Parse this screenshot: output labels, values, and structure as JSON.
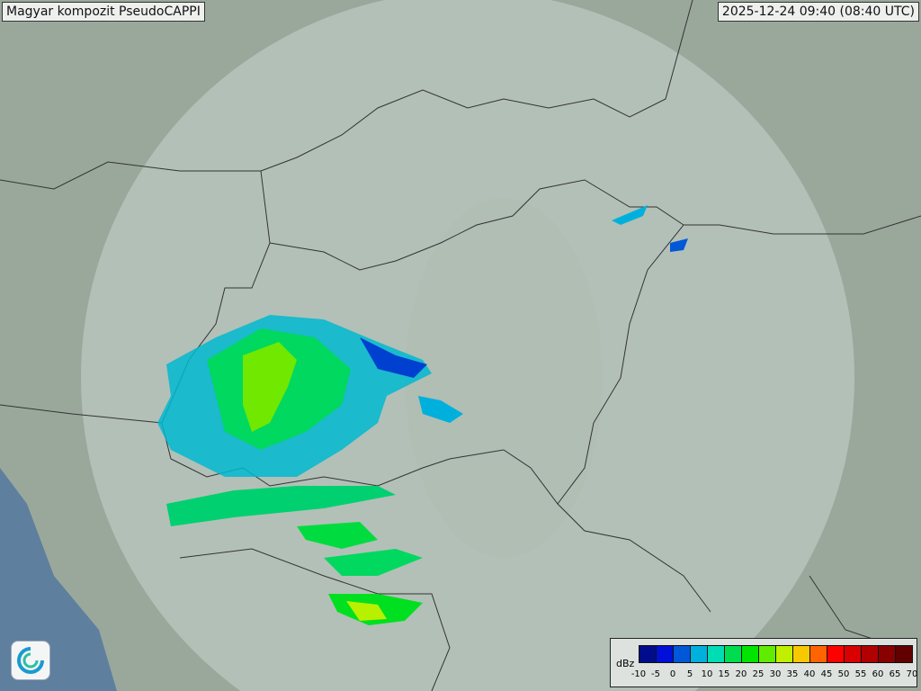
{
  "header": {
    "title": "Magyar kompozit  PseudoCAPPI",
    "timestamp": "2025-12-24 09:40 (08:40 UTC)"
  },
  "legend": {
    "unit": "dBz",
    "ticks": [
      "-10",
      "-5",
      "0",
      "5",
      "10",
      "15",
      "20",
      "25",
      "30",
      "35",
      "40",
      "45",
      "50",
      "55",
      "60",
      "65",
      "70"
    ],
    "colors": [
      "#000c8c",
      "#0010d8",
      "#0058d8",
      "#00b0dc",
      "#00dcb4",
      "#00dc50",
      "#00e400",
      "#60ec00",
      "#c0f000",
      "#f8c800",
      "#ff6400",
      "#ff0000",
      "#d80000",
      "#b00000",
      "#880000",
      "#600000"
    ]
  },
  "map": {
    "background": "#9aa89c",
    "coverage_color": "#c8d4cc",
    "water": "#5a7a9a"
  },
  "logo": {
    "icon": "met-service-swirl-logo"
  }
}
